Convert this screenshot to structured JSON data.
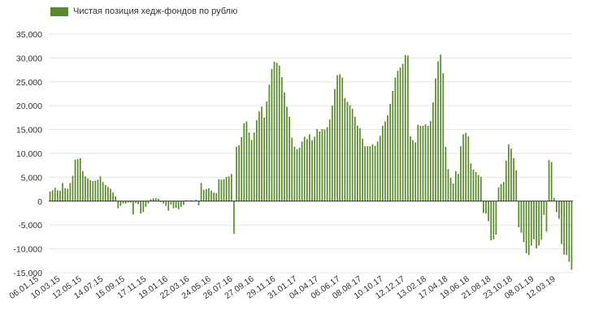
{
  "chart_data": {
    "type": "bar",
    "legend": {
      "label": "Чистая позиция хедж-фондов по рублю",
      "position": "top-left"
    },
    "color": "#5a8a2e",
    "grid": true,
    "ylim": [
      -15000,
      35000
    ],
    "y_ticks": [
      {
        "value": 35000,
        "label": "35,000"
      },
      {
        "value": 30000,
        "label": "30,000"
      },
      {
        "value": 25000,
        "label": "25,000"
      },
      {
        "value": 20000,
        "label": "20,000"
      },
      {
        "value": 15000,
        "label": "15,000"
      },
      {
        "value": 10000,
        "label": "10,000"
      },
      {
        "value": 5000,
        "label": "5,000"
      },
      {
        "value": 0,
        "label": "0"
      },
      {
        "value": -5000,
        "label": "-5,000"
      },
      {
        "value": -10000,
        "label": "-10,000"
      },
      {
        "value": -15000,
        "label": "-15,000"
      }
    ],
    "x_tick_labels": [
      "06.01.15",
      "10.03.15",
      "12.05.15",
      "14.07.15",
      "15.09.15",
      "17.11.15",
      "19.01.16",
      "22.03.16",
      "24.05.16",
      "26.07.16",
      "27.09.16",
      "29.11.16",
      "31.01.17",
      "04.04.17",
      "06.06.17",
      "08.08.17",
      "10.10.17",
      "12.12.17",
      "13.02.18",
      "17.04.18",
      "19.06.18",
      "21.08.18",
      "23.10.18",
      "08.01.19",
      "12.03.19"
    ],
    "values": [
      2000,
      2300,
      2800,
      2300,
      2200,
      3800,
      2700,
      2600,
      3800,
      5300,
      8700,
      8800,
      9000,
      6300,
      5200,
      4800,
      4400,
      4200,
      4300,
      4500,
      5200,
      4000,
      3400,
      3000,
      2600,
      1800,
      1000,
      -1500,
      -1000,
      -500,
      -500,
      -300,
      -300,
      -2800,
      -400,
      -600,
      -2600,
      -2300,
      -1200,
      -500,
      400,
      600,
      600,
      500,
      -200,
      -500,
      -1000,
      -2000,
      -700,
      -1500,
      -1400,
      -1700,
      -1200,
      -800,
      200,
      100,
      200,
      -100,
      300,
      -900,
      3800,
      2400,
      2500,
      2700,
      2200,
      1800,
      1700,
      4600,
      4500,
      4600,
      5100,
      5200,
      5700,
      -6800,
      11400,
      11700,
      13400,
      16300,
      16700,
      14400,
      12800,
      14400,
      17000,
      18800,
      19800,
      17500,
      20900,
      24400,
      27700,
      29200,
      29000,
      28400,
      26000,
      22800,
      19800,
      17700,
      13300,
      11400,
      10900,
      11200,
      12500,
      13500,
      13000,
      14000,
      12800,
      13500,
      15100,
      14600,
      15100,
      15000,
      15500,
      17100,
      20000,
      23500,
      26400,
      26600,
      25900,
      21600,
      20800,
      20100,
      19300,
      17700,
      15800,
      15300,
      13100,
      11500,
      11500,
      11500,
      11900,
      11600,
      12500,
      13700,
      15800,
      16700,
      18000,
      20400,
      23100,
      25900,
      27300,
      28000,
      28800,
      30600,
      30500,
      13600,
      12800,
      12300,
      16000,
      15800,
      15800,
      16100,
      15800,
      16800,
      20700,
      25700,
      29300,
      30700,
      26800,
      11400,
      6700,
      4900,
      3700,
      6300,
      5700,
      11500,
      14000,
      14300,
      13600,
      7900,
      6600,
      6100,
      5500,
      5100,
      -2500,
      -2600,
      -4200,
      -8200,
      -8000,
      -7000,
      2900,
      3600,
      4000,
      8500,
      11900,
      11000,
      9000,
      6500,
      -5500,
      -6600,
      -8600,
      -10900,
      -11300,
      -9300,
      -8000,
      -9900,
      -9300,
      -8100,
      -2900,
      -6400,
      8600,
      8200,
      700,
      -2300,
      -3700,
      -9000,
      -11200,
      -11300,
      -12700,
      -14400
    ]
  }
}
